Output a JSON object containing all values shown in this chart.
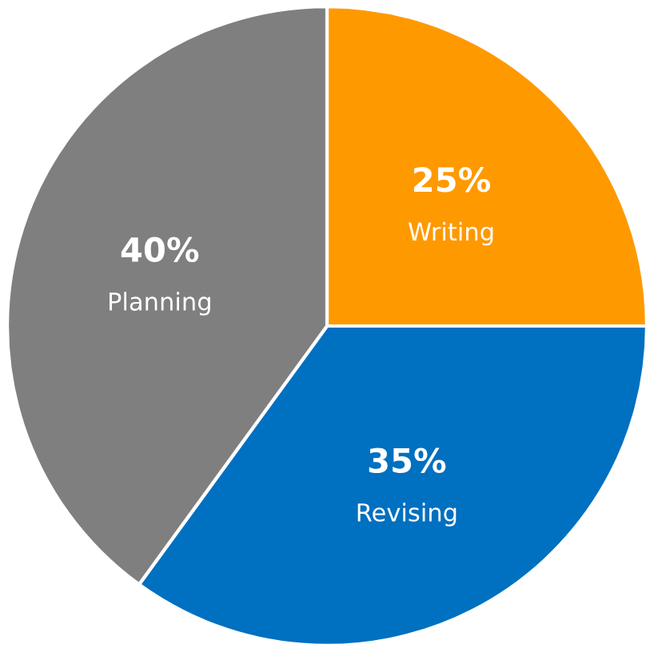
{
  "chart_data": {
    "type": "pie",
    "categories": [
      "Writing",
      "Revising",
      "Planning"
    ],
    "values": [
      25,
      35,
      40
    ],
    "value_labels": [
      "25%",
      "35%",
      "40%"
    ],
    "colors": [
      "#ff9900",
      "#0070c0",
      "#7f7f7f"
    ],
    "legend": false
  }
}
